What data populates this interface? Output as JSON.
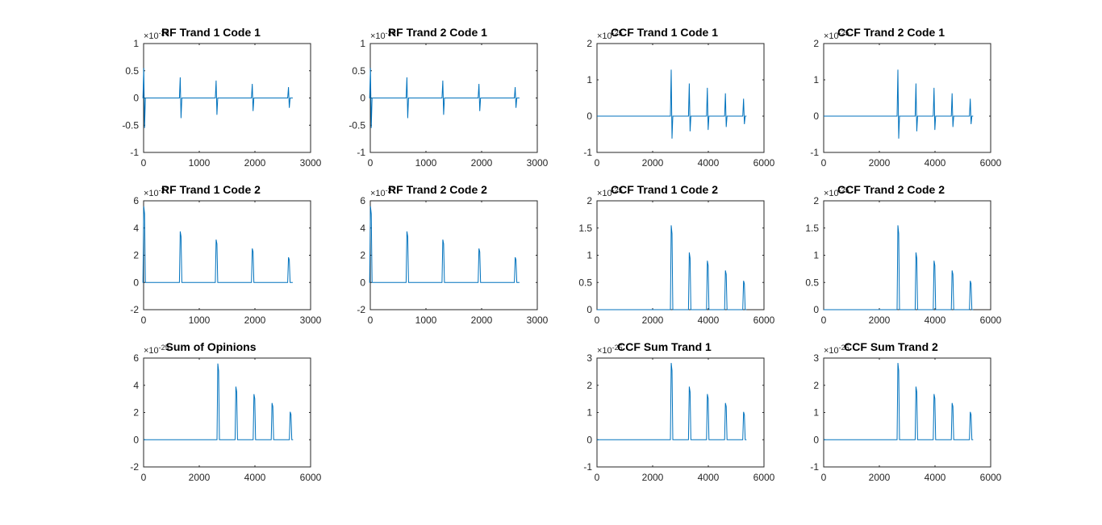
{
  "figure": {
    "background": "#ffffff",
    "line_color": "#0072bd"
  },
  "chart_data": [
    {
      "type": "line",
      "title": "RF Trand 1 Code 1",
      "multiplier": "×10",
      "exponent": "-26",
      "xlim": [
        0,
        3000
      ],
      "ylim": [
        -1,
        1
      ],
      "xticks": [
        "0",
        "1000",
        "2000",
        "3000"
      ],
      "yticks": [
        "-1",
        "-0.5",
        "0",
        "0.5",
        "1"
      ],
      "series": [
        {
          "x": [
            0,
            2680
          ],
          "peaks": [
            {
              "x": 10,
              "hi": 0.55,
              "lo": -0.55
            },
            {
              "x": 665,
              "hi": 0.38,
              "lo": -0.37
            },
            {
              "x": 1310,
              "hi": 0.32,
              "lo": -0.31
            },
            {
              "x": 1960,
              "hi": 0.26,
              "lo": -0.24
            },
            {
              "x": 2610,
              "hi": 0.2,
              "lo": -0.18
            }
          ]
        }
      ]
    },
    {
      "type": "line",
      "title": "RF Trand 2 Code 1",
      "multiplier": "×10",
      "exponent": "-26",
      "xlim": [
        0,
        3000
      ],
      "ylim": [
        -1,
        1
      ],
      "xticks": [
        "0",
        "1000",
        "2000",
        "3000"
      ],
      "yticks": [
        "-1",
        "-0.5",
        "0",
        "0.5",
        "1"
      ],
      "series": [
        {
          "x": [
            0,
            2680
          ],
          "peaks": [
            {
              "x": 10,
              "hi": 0.55,
              "lo": -0.55
            },
            {
              "x": 665,
              "hi": 0.38,
              "lo": -0.37
            },
            {
              "x": 1310,
              "hi": 0.32,
              "lo": -0.31
            },
            {
              "x": 1960,
              "hi": 0.26,
              "lo": -0.24
            },
            {
              "x": 2610,
              "hi": 0.2,
              "lo": -0.18
            }
          ]
        }
      ]
    },
    {
      "type": "line",
      "title": "CCF Trand 1 Code 1",
      "multiplier": "×10",
      "exponent": "-25",
      "xlim": [
        0,
        6000
      ],
      "ylim": [
        -1,
        2
      ],
      "xticks": [
        "0",
        "2000",
        "4000",
        "6000"
      ],
      "yticks": [
        "-1",
        "0",
        "1",
        "2"
      ],
      "series": [
        {
          "x": [
            0,
            5370
          ],
          "peaks": [
            {
              "x": 2680,
              "hi": 1.28,
              "lo": -0.62
            },
            {
              "x": 3330,
              "hi": 0.9,
              "lo": -0.42
            },
            {
              "x": 3980,
              "hi": 0.78,
              "lo": -0.38
            },
            {
              "x": 4630,
              "hi": 0.63,
              "lo": -0.3
            },
            {
              "x": 5280,
              "hi": 0.48,
              "lo": -0.22
            }
          ]
        }
      ]
    },
    {
      "type": "line",
      "title": "CCF Trand 2 Code 1",
      "multiplier": "×10",
      "exponent": "-25",
      "xlim": [
        0,
        6000
      ],
      "ylim": [
        -1,
        2
      ],
      "xticks": [
        "0",
        "2000",
        "4000",
        "6000"
      ],
      "yticks": [
        "-1",
        "0",
        "1",
        "2"
      ],
      "series": [
        {
          "x": [
            0,
            5370
          ],
          "peaks": [
            {
              "x": 2680,
              "hi": 1.28,
              "lo": -0.62
            },
            {
              "x": 3330,
              "hi": 0.9,
              "lo": -0.42
            },
            {
              "x": 3980,
              "hi": 0.78,
              "lo": -0.38
            },
            {
              "x": 4630,
              "hi": 0.63,
              "lo": -0.3
            },
            {
              "x": 5280,
              "hi": 0.48,
              "lo": -0.22
            }
          ]
        }
      ]
    },
    {
      "type": "line",
      "title": "RF Trand 1 Code 2",
      "multiplier": "×10",
      "exponent": "-27",
      "xlim": [
        0,
        3000
      ],
      "ylim": [
        -2,
        6
      ],
      "xticks": [
        "0",
        "1000",
        "2000",
        "3000"
      ],
      "yticks": [
        "-2",
        "0",
        "2",
        "4",
        "6"
      ],
      "series": [
        {
          "x": [
            0,
            2680
          ],
          "peaks": [
            {
              "x": 10,
              "hi": 5.6,
              "lo": 0
            },
            {
              "x": 665,
              "hi": 3.75,
              "lo": 0
            },
            {
              "x": 1310,
              "hi": 3.15,
              "lo": 0
            },
            {
              "x": 1960,
              "hi": 2.5,
              "lo": 0
            },
            {
              "x": 2610,
              "hi": 1.85,
              "lo": 0
            }
          ]
        }
      ]
    },
    {
      "type": "line",
      "title": "RF Trand 2 Code 2",
      "multiplier": "×10",
      "exponent": "-27",
      "xlim": [
        0,
        3000
      ],
      "ylim": [
        -2,
        6
      ],
      "xticks": [
        "0",
        "1000",
        "2000",
        "3000"
      ],
      "yticks": [
        "-2",
        "0",
        "2",
        "4",
        "6"
      ],
      "series": [
        {
          "x": [
            0,
            2680
          ],
          "peaks": [
            {
              "x": 10,
              "hi": 5.6,
              "lo": 0
            },
            {
              "x": 665,
              "hi": 3.75,
              "lo": 0
            },
            {
              "x": 1310,
              "hi": 3.15,
              "lo": 0
            },
            {
              "x": 1960,
              "hi": 2.5,
              "lo": 0
            },
            {
              "x": 2610,
              "hi": 1.85,
              "lo": 0
            }
          ]
        }
      ]
    },
    {
      "type": "line",
      "title": "CCF Trand 1 Code 2",
      "multiplier": "×10",
      "exponent": "-25",
      "xlim": [
        0,
        6000
      ],
      "ylim": [
        0,
        2
      ],
      "xticks": [
        "0",
        "2000",
        "4000",
        "6000"
      ],
      "yticks": [
        "0",
        "0.5",
        "1",
        "1.5",
        "2"
      ],
      "series": [
        {
          "x": [
            0,
            5370
          ],
          "peaks": [
            {
              "x": 2680,
              "hi": 1.55,
              "lo": 0
            },
            {
              "x": 3330,
              "hi": 1.05,
              "lo": 0
            },
            {
              "x": 3980,
              "hi": 0.9,
              "lo": 0
            },
            {
              "x": 4630,
              "hi": 0.72,
              "lo": 0
            },
            {
              "x": 5280,
              "hi": 0.53,
              "lo": 0
            }
          ]
        }
      ]
    },
    {
      "type": "line",
      "title": "CCF Trand 2 Code 2",
      "multiplier": "×10",
      "exponent": "-25",
      "xlim": [
        0,
        6000
      ],
      "ylim": [
        0,
        2
      ],
      "xticks": [
        "0",
        "2000",
        "4000",
        "6000"
      ],
      "yticks": [
        "0",
        "0.5",
        "1",
        "1.5",
        "2"
      ],
      "series": [
        {
          "x": [
            0,
            5370
          ],
          "peaks": [
            {
              "x": 2680,
              "hi": 1.55,
              "lo": 0
            },
            {
              "x": 3330,
              "hi": 1.05,
              "lo": 0
            },
            {
              "x": 3980,
              "hi": 0.9,
              "lo": 0
            },
            {
              "x": 4630,
              "hi": 0.72,
              "lo": 0
            },
            {
              "x": 5280,
              "hi": 0.53,
              "lo": 0
            }
          ]
        }
      ]
    },
    {
      "type": "line",
      "title": "Sum of Opinions",
      "multiplier": "×10",
      "exponent": "-25",
      "xlim": [
        0,
        6000
      ],
      "ylim": [
        -2,
        6
      ],
      "xticks": [
        "0",
        "2000",
        "4000",
        "6000"
      ],
      "yticks": [
        "-2",
        "0",
        "2",
        "4",
        "6"
      ],
      "series": [
        {
          "x": [
            0,
            5370
          ],
          "peaks": [
            {
              "x": 2680,
              "hi": 5.6,
              "lo": 0
            },
            {
              "x": 3330,
              "hi": 3.9,
              "lo": 0
            },
            {
              "x": 3980,
              "hi": 3.35,
              "lo": 0
            },
            {
              "x": 4630,
              "hi": 2.7,
              "lo": 0
            },
            {
              "x": 5280,
              "hi": 2.05,
              "lo": 0
            }
          ]
        }
      ]
    },
    {
      "type": "line",
      "title": "CCF Sum Trand 1",
      "multiplier": "×10",
      "exponent": "-25",
      "xlim": [
        0,
        6000
      ],
      "ylim": [
        -1,
        3
      ],
      "xticks": [
        "0",
        "2000",
        "4000",
        "6000"
      ],
      "yticks": [
        "-1",
        "0",
        "1",
        "2",
        "3"
      ],
      "series": [
        {
          "x": [
            0,
            5370
          ],
          "peaks": [
            {
              "x": 2680,
              "hi": 2.82,
              "lo": 0
            },
            {
              "x": 3330,
              "hi": 1.95,
              "lo": 0
            },
            {
              "x": 3980,
              "hi": 1.68,
              "lo": 0
            },
            {
              "x": 4630,
              "hi": 1.35,
              "lo": 0
            },
            {
              "x": 5280,
              "hi": 1.02,
              "lo": 0
            }
          ]
        }
      ]
    },
    {
      "type": "line",
      "title": "CCF Sum Trand 2",
      "multiplier": "×10",
      "exponent": "-25",
      "xlim": [
        0,
        6000
      ],
      "ylim": [
        -1,
        3
      ],
      "xticks": [
        "0",
        "2000",
        "4000",
        "6000"
      ],
      "yticks": [
        "-1",
        "0",
        "1",
        "2",
        "3"
      ],
      "series": [
        {
          "x": [
            0,
            5370
          ],
          "peaks": [
            {
              "x": 2680,
              "hi": 2.82,
              "lo": 0
            },
            {
              "x": 3330,
              "hi": 1.95,
              "lo": 0
            },
            {
              "x": 3980,
              "hi": 1.68,
              "lo": 0
            },
            {
              "x": 4630,
              "hi": 1.35,
              "lo": 0
            },
            {
              "x": 5280,
              "hi": 1.02,
              "lo": 0
            }
          ]
        }
      ]
    }
  ]
}
